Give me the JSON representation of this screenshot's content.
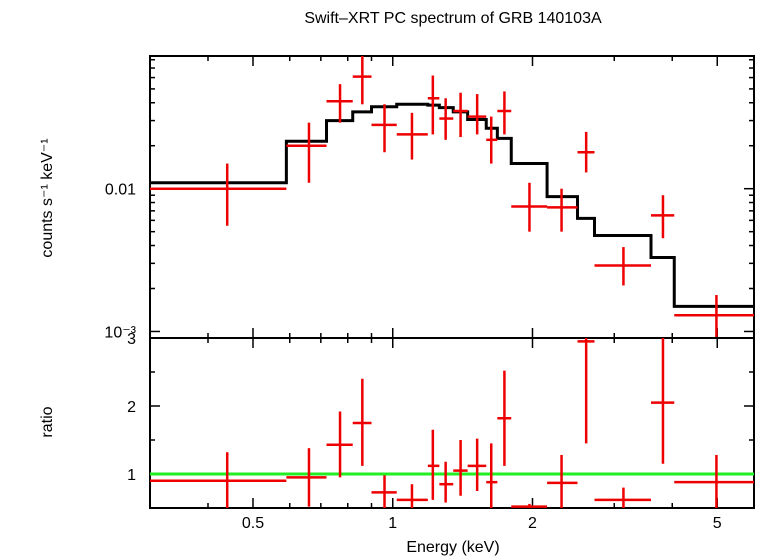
{
  "chart_data": [
    {
      "type": "scatter",
      "panel": "spectrum",
      "title": "Swift–XRT PC spectrum of GRB 140103A",
      "xlabel": "Energy (keV)",
      "ylabel": "counts s⁻¹ keV⁻¹",
      "xscale": "log",
      "yscale": "log",
      "xlim": [
        0.3,
        6.0
      ],
      "ylim": [
        0.0009,
        0.085
      ],
      "y_ticks": [
        {
          "value": 0.01,
          "label": "0.01"
        },
        {
          "value": 0.001,
          "label": "10⁻³"
        }
      ],
      "series": [
        {
          "name": "",
          "kind": "data",
          "color": "#ee0000",
          "points": [
            {
              "xlo": 0.3,
              "xhi": 0.59,
              "x": 0.44,
              "y": 0.01,
              "ylo": 0.0055,
              "yhi": 0.015
            },
            {
              "xlo": 0.59,
              "xhi": 0.72,
              "x": 0.66,
              "y": 0.02,
              "ylo": 0.011,
              "yhi": 0.029
            },
            {
              "xlo": 0.72,
              "xhi": 0.82,
              "x": 0.77,
              "y": 0.041,
              "ylo": 0.029,
              "yhi": 0.054
            },
            {
              "xlo": 0.82,
              "xhi": 0.9,
              "x": 0.86,
              "y": 0.061,
              "ylo": 0.039,
              "yhi": 0.086
            },
            {
              "xlo": 0.9,
              "xhi": 1.02,
              "x": 0.96,
              "y": 0.028,
              "ylo": 0.018,
              "yhi": 0.039
            },
            {
              "xlo": 1.02,
              "xhi": 1.19,
              "x": 1.1,
              "y": 0.024,
              "ylo": 0.016,
              "yhi": 0.034
            },
            {
              "xlo": 1.19,
              "xhi": 1.26,
              "x": 1.22,
              "y": 0.043,
              "ylo": 0.024,
              "yhi": 0.062
            },
            {
              "xlo": 1.26,
              "xhi": 1.35,
              "x": 1.3,
              "y": 0.031,
              "ylo": 0.022,
              "yhi": 0.043
            },
            {
              "xlo": 1.35,
              "xhi": 1.45,
              "x": 1.4,
              "y": 0.035,
              "ylo": 0.023,
              "yhi": 0.047
            },
            {
              "xlo": 1.45,
              "xhi": 1.59,
              "x": 1.52,
              "y": 0.032,
              "ylo": 0.024,
              "yhi": 0.046
            },
            {
              "xlo": 1.59,
              "xhi": 1.68,
              "x": 1.63,
              "y": 0.022,
              "ylo": 0.015,
              "yhi": 0.032
            },
            {
              "xlo": 1.68,
              "xhi": 1.8,
              "x": 1.74,
              "y": 0.035,
              "ylo": 0.024,
              "yhi": 0.048
            },
            {
              "xlo": 1.8,
              "xhi": 2.15,
              "x": 1.97,
              "y": 0.0075,
              "ylo": 0.005,
              "yhi": 0.011
            },
            {
              "xlo": 2.15,
              "xhi": 2.5,
              "x": 2.31,
              "y": 0.0074,
              "ylo": 0.005,
              "yhi": 0.01
            },
            {
              "xlo": 2.5,
              "xhi": 2.72,
              "x": 2.61,
              "y": 0.018,
              "ylo": 0.013,
              "yhi": 0.025
            },
            {
              "xlo": 2.72,
              "xhi": 3.6,
              "x": 3.14,
              "y": 0.0029,
              "ylo": 0.0021,
              "yhi": 0.0039
            },
            {
              "xlo": 3.6,
              "xhi": 4.04,
              "x": 3.82,
              "y": 0.0065,
              "ylo": 0.0045,
              "yhi": 0.009
            },
            {
              "xlo": 4.04,
              "xhi": 6.0,
              "x": 4.98,
              "y": 0.0013,
              "ylo": 0.0009,
              "yhi": 0.0018
            }
          ]
        },
        {
          "name": "",
          "kind": "model",
          "color": "#000000",
          "steps": [
            {
              "xlo": 0.3,
              "xhi": 0.59,
              "y": 0.011
            },
            {
              "xlo": 0.59,
              "xhi": 0.72,
              "y": 0.0215
            },
            {
              "xlo": 0.72,
              "xhi": 0.82,
              "y": 0.03
            },
            {
              "xlo": 0.82,
              "xhi": 0.9,
              "y": 0.0345
            },
            {
              "xlo": 0.9,
              "xhi": 1.02,
              "y": 0.0375
            },
            {
              "xlo": 1.02,
              "xhi": 1.19,
              "y": 0.039
            },
            {
              "xlo": 1.19,
              "xhi": 1.26,
              "y": 0.0385
            },
            {
              "xlo": 1.26,
              "xhi": 1.35,
              "y": 0.037
            },
            {
              "xlo": 1.35,
              "xhi": 1.45,
              "y": 0.0345
            },
            {
              "xlo": 1.45,
              "xhi": 1.59,
              "y": 0.0305
            },
            {
              "xlo": 1.59,
              "xhi": 1.68,
              "y": 0.0265
            },
            {
              "xlo": 1.68,
              "xhi": 1.8,
              "y": 0.0225
            },
            {
              "xlo": 1.8,
              "xhi": 2.15,
              "y": 0.015
            },
            {
              "xlo": 2.15,
              "xhi": 2.5,
              "y": 0.0088
            },
            {
              "xlo": 2.5,
              "xhi": 2.72,
              "y": 0.0062
            },
            {
              "xlo": 2.72,
              "xhi": 3.6,
              "y": 0.0047
            },
            {
              "xlo": 3.6,
              "xhi": 4.04,
              "y": 0.0033
            },
            {
              "xlo": 4.04,
              "xhi": 6.0,
              "y": 0.0015
            }
          ]
        }
      ]
    },
    {
      "type": "scatter",
      "panel": "ratio",
      "xlabel": "Energy (keV)",
      "ylabel": "ratio",
      "xscale": "log",
      "xlim": [
        0.3,
        6.0
      ],
      "ylim": [
        0.5,
        3.0
      ],
      "y_ticks": [
        {
          "value": 1,
          "label": "1"
        },
        {
          "value": 2,
          "label": "2"
        },
        {
          "value": 3,
          "label": "3"
        }
      ],
      "x_ticks": [
        {
          "value": 0.5,
          "label": "0.5"
        },
        {
          "value": 1,
          "label": "1"
        },
        {
          "value": 2,
          "label": "2"
        },
        {
          "value": 5,
          "label": "5"
        }
      ],
      "reference_line": {
        "y": 1.0,
        "color": "#22ee22"
      },
      "series": [
        {
          "name": "",
          "kind": "data",
          "color": "#ee0000",
          "points": [
            {
              "xlo": 0.3,
              "xhi": 0.59,
              "x": 0.44,
              "y": 0.9,
              "ylo": 0.48,
              "yhi": 1.32
            },
            {
              "xlo": 0.59,
              "xhi": 0.72,
              "x": 0.66,
              "y": 0.95,
              "ylo": 0.52,
              "yhi": 1.38
            },
            {
              "xlo": 0.72,
              "xhi": 0.82,
              "x": 0.77,
              "y": 1.43,
              "ylo": 0.95,
              "yhi": 1.92
            },
            {
              "xlo": 0.82,
              "xhi": 0.9,
              "x": 0.86,
              "y": 1.75,
              "ylo": 1.12,
              "yhi": 2.4
            },
            {
              "xlo": 0.9,
              "xhi": 1.02,
              "x": 0.96,
              "y": 0.73,
              "ylo": 0.48,
              "yhi": 0.98
            },
            {
              "xlo": 1.02,
              "xhi": 1.19,
              "x": 1.1,
              "y": 0.62,
              "ylo": 0.42,
              "yhi": 0.85
            },
            {
              "xlo": 1.19,
              "xhi": 1.26,
              "x": 1.22,
              "y": 1.12,
              "ylo": 0.62,
              "yhi": 1.65
            },
            {
              "xlo": 1.26,
              "xhi": 1.35,
              "x": 1.3,
              "y": 0.85,
              "ylo": 0.58,
              "yhi": 1.18
            },
            {
              "xlo": 1.35,
              "xhi": 1.45,
              "x": 1.4,
              "y": 1.05,
              "ylo": 0.68,
              "yhi": 1.5
            },
            {
              "xlo": 1.45,
              "xhi": 1.59,
              "x": 1.52,
              "y": 1.12,
              "ylo": 0.75,
              "yhi": 1.52
            },
            {
              "xlo": 1.59,
              "xhi": 1.68,
              "x": 1.63,
              "y": 0.88,
              "ylo": 0.48,
              "yhi": 1.45
            },
            {
              "xlo": 1.68,
              "xhi": 1.8,
              "x": 1.74,
              "y": 1.82,
              "ylo": 1.12,
              "yhi": 2.52
            },
            {
              "xlo": 1.8,
              "xhi": 2.15,
              "x": 1.97,
              "y": 0.52,
              "ylo": 0.48,
              "yhi": 0.56
            },
            {
              "xlo": 2.15,
              "xhi": 2.5,
              "x": 2.31,
              "y": 0.87,
              "ylo": 0.48,
              "yhi": 1.28
            },
            {
              "xlo": 2.5,
              "xhi": 2.72,
              "x": 2.61,
              "y": 2.95,
              "ylo": 1.45,
              "yhi": 3.05
            },
            {
              "xlo": 2.72,
              "xhi": 3.6,
              "x": 3.14,
              "y": 0.62,
              "ylo": 0.48,
              "yhi": 0.8
            },
            {
              "xlo": 3.6,
              "xhi": 4.04,
              "x": 3.82,
              "y": 2.05,
              "ylo": 1.15,
              "yhi": 3.05
            },
            {
              "xlo": 4.04,
              "xhi": 6.0,
              "x": 4.98,
              "y": 0.88,
              "ylo": 0.48,
              "yhi": 1.28
            }
          ]
        }
      ]
    }
  ]
}
